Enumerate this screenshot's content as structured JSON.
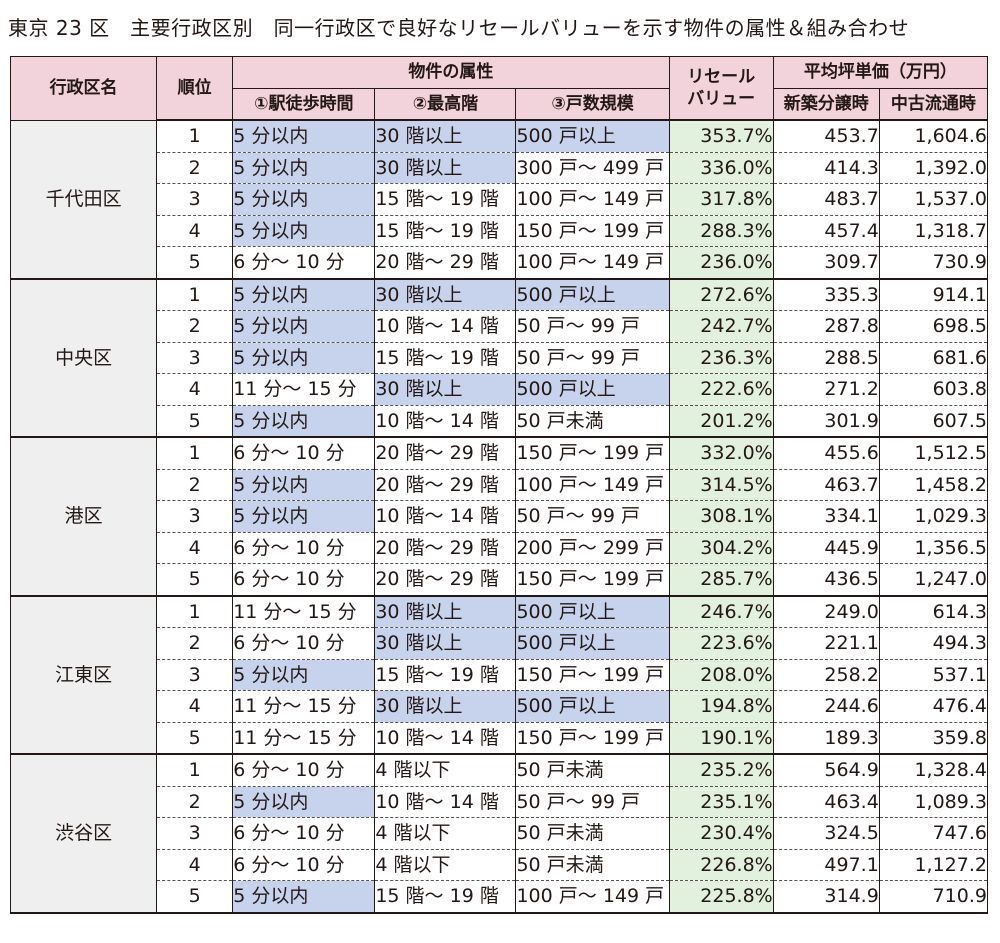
{
  "title": "東京 23 区　主要行政区別　同一行政区で良好なリセールバリューを示す物件の属性＆組み合わせ",
  "header": {
    "ward": "行政区名",
    "rank": "順位",
    "attributes": "物件の属性",
    "walk": "①駅徒歩時間",
    "floor": "②最高階",
    "units": "③戸数規模",
    "resale_line1": "リセール",
    "resale_line2": "バリュー",
    "price": "平均坪単価（万円）",
    "new": "新築分譲時",
    "used": "中古流通時"
  },
  "colors": {
    "header_bg": "#f3d3db",
    "resale_header_bg": "#d9ecd5",
    "resale_cell_bg": "#e2f0de",
    "highlight_bg": "#c7d3ec",
    "ward_bg": "#efefef"
  },
  "wards": [
    {
      "name": "千代田区",
      "rows": [
        {
          "rank": "1",
          "walk": "5 分以内",
          "walk_hl": true,
          "floor": "30 階以上",
          "floor_hl": true,
          "units": "500 戸以上",
          "units_hl": true,
          "resale": "353.7%",
          "new": "453.7",
          "used": "1,604.6"
        },
        {
          "rank": "2",
          "walk": "5 分以内",
          "walk_hl": true,
          "floor": "30 階以上",
          "floor_hl": true,
          "units": "300 戸～ 499 戸",
          "units_hl": false,
          "resale": "336.0%",
          "new": "414.3",
          "used": "1,392.0"
        },
        {
          "rank": "3",
          "walk": "5 分以内",
          "walk_hl": true,
          "floor": "15 階～ 19 階",
          "floor_hl": false,
          "units": "100 戸～ 149 戸",
          "units_hl": false,
          "resale": "317.8%",
          "new": "483.7",
          "used": "1,537.0"
        },
        {
          "rank": "4",
          "walk": "5 分以内",
          "walk_hl": true,
          "floor": "15 階～ 19 階",
          "floor_hl": false,
          "units": "150 戸～ 199 戸",
          "units_hl": false,
          "resale": "288.3%",
          "new": "457.4",
          "used": "1,318.7"
        },
        {
          "rank": "5",
          "walk": "6 分～ 10 分",
          "walk_hl": false,
          "floor": "20 階～ 29 階",
          "floor_hl": false,
          "units": "100 戸～ 149 戸",
          "units_hl": false,
          "resale": "236.0%",
          "new": "309.7",
          "used": "730.9"
        }
      ]
    },
    {
      "name": "中央区",
      "rows": [
        {
          "rank": "1",
          "walk": "5 分以内",
          "walk_hl": true,
          "floor": "30 階以上",
          "floor_hl": true,
          "units": "500 戸以上",
          "units_hl": true,
          "resale": "272.6%",
          "new": "335.3",
          "used": "914.1"
        },
        {
          "rank": "2",
          "walk": "5 分以内",
          "walk_hl": true,
          "floor": "10 階～ 14 階",
          "floor_hl": false,
          "units": "50 戸～ 99 戸",
          "units_hl": false,
          "resale": "242.7%",
          "new": "287.8",
          "used": "698.5"
        },
        {
          "rank": "3",
          "walk": "5 分以内",
          "walk_hl": true,
          "floor": "15 階～ 19 階",
          "floor_hl": false,
          "units": "50 戸～ 99 戸",
          "units_hl": false,
          "resale": "236.3%",
          "new": "288.5",
          "used": "681.6"
        },
        {
          "rank": "4",
          "walk": "11 分～ 15 分",
          "walk_hl": false,
          "floor": "30 階以上",
          "floor_hl": true,
          "units": "500 戸以上",
          "units_hl": true,
          "resale": "222.6%",
          "new": "271.2",
          "used": "603.8"
        },
        {
          "rank": "5",
          "walk": "5 分以内",
          "walk_hl": true,
          "floor": "10 階～ 14 階",
          "floor_hl": false,
          "units": "50 戸未満",
          "units_hl": false,
          "resale": "201.2%",
          "new": "301.9",
          "used": "607.5"
        }
      ]
    },
    {
      "name": "港区",
      "rows": [
        {
          "rank": "1",
          "walk": "6 分～ 10 分",
          "walk_hl": false,
          "floor": "20 階～ 29 階",
          "floor_hl": false,
          "units": "150 戸～ 199 戸",
          "units_hl": false,
          "resale": "332.0%",
          "new": "455.6",
          "used": "1,512.5"
        },
        {
          "rank": "2",
          "walk": "5 分以内",
          "walk_hl": true,
          "floor": "20 階～ 29 階",
          "floor_hl": false,
          "units": "100 戸～ 149 戸",
          "units_hl": false,
          "resale": "314.5%",
          "new": "463.7",
          "used": "1,458.2"
        },
        {
          "rank": "3",
          "walk": "5 分以内",
          "walk_hl": true,
          "floor": "10 階～ 14 階",
          "floor_hl": false,
          "units": "50 戸～ 99 戸",
          "units_hl": false,
          "resale": "308.1%",
          "new": "334.1",
          "used": "1,029.3"
        },
        {
          "rank": "4",
          "walk": "6 分～ 10 分",
          "walk_hl": false,
          "floor": "20 階～ 29 階",
          "floor_hl": false,
          "units": "200 戸～ 299 戸",
          "units_hl": false,
          "resale": "304.2%",
          "new": "445.9",
          "used": "1,356.5"
        },
        {
          "rank": "5",
          "walk": "6 分～ 10 分",
          "walk_hl": false,
          "floor": "20 階～ 29 階",
          "floor_hl": false,
          "units": "150 戸～ 199 戸",
          "units_hl": false,
          "resale": "285.7%",
          "new": "436.5",
          "used": "1,247.0"
        }
      ]
    },
    {
      "name": "江東区",
      "rows": [
        {
          "rank": "1",
          "walk": "11 分～ 15 分",
          "walk_hl": false,
          "floor": "30 階以上",
          "floor_hl": true,
          "units": "500 戸以上",
          "units_hl": true,
          "resale": "246.7%",
          "new": "249.0",
          "used": "614.3"
        },
        {
          "rank": "2",
          "walk": "6 分～ 10 分",
          "walk_hl": false,
          "floor": "30 階以上",
          "floor_hl": true,
          "units": "500 戸以上",
          "units_hl": true,
          "resale": "223.6%",
          "new": "221.1",
          "used": "494.3"
        },
        {
          "rank": "3",
          "walk": "5 分以内",
          "walk_hl": true,
          "floor": "15 階～ 19 階",
          "floor_hl": false,
          "units": "150 戸～ 199 戸",
          "units_hl": false,
          "resale": "208.0%",
          "new": "258.2",
          "used": "537.1"
        },
        {
          "rank": "4",
          "walk": "11 分～ 15 分",
          "walk_hl": false,
          "floor": "30 階以上",
          "floor_hl": true,
          "units": "500 戸以上",
          "units_hl": true,
          "resale": "194.8%",
          "new": "244.6",
          "used": "476.4"
        },
        {
          "rank": "5",
          "walk": "11 分～ 15 分",
          "walk_hl": false,
          "floor": "10 階～ 14 階",
          "floor_hl": false,
          "units": "150 戸～ 199 戸",
          "units_hl": false,
          "resale": "190.1%",
          "new": "189.3",
          "used": "359.8"
        }
      ]
    },
    {
      "name": "渋谷区",
      "rows": [
        {
          "rank": "1",
          "walk": "6 分～ 10 分",
          "walk_hl": false,
          "floor": "4 階以下",
          "floor_hl": false,
          "units": "50 戸未満",
          "units_hl": false,
          "resale": "235.2%",
          "new": "564.9",
          "used": "1,328.4"
        },
        {
          "rank": "2",
          "walk": "5 分以内",
          "walk_hl": true,
          "floor": "10 階～ 14 階",
          "floor_hl": false,
          "units": "50 戸～ 99 戸",
          "units_hl": false,
          "resale": "235.1%",
          "new": "463.4",
          "used": "1,089.3"
        },
        {
          "rank": "3",
          "walk": "6 分～ 10 分",
          "walk_hl": false,
          "floor": "4 階以下",
          "floor_hl": false,
          "units": "50 戸未満",
          "units_hl": false,
          "resale": "230.4%",
          "new": "324.5",
          "used": "747.6"
        },
        {
          "rank": "4",
          "walk": "6 分～ 10 分",
          "walk_hl": false,
          "floor": "4 階以下",
          "floor_hl": false,
          "units": "50 戸未満",
          "units_hl": false,
          "resale": "226.8%",
          "new": "497.1",
          "used": "1,127.2"
        },
        {
          "rank": "5",
          "walk": "5 分以内",
          "walk_hl": true,
          "floor": "15 階～ 19 階",
          "floor_hl": false,
          "units": "100 戸～ 149 戸",
          "units_hl": false,
          "resale": "225.8%",
          "new": "314.9",
          "used": "710.9"
        }
      ]
    }
  ]
}
